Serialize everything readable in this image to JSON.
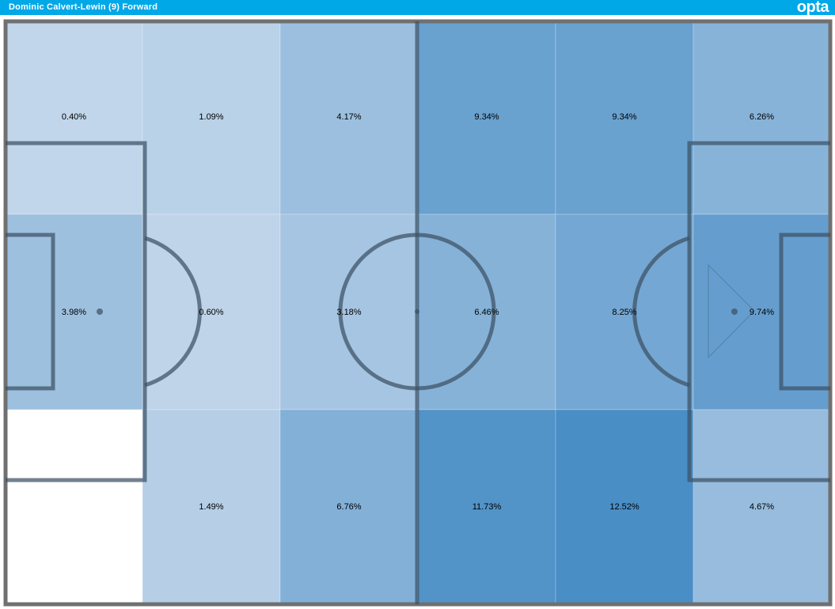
{
  "header": {
    "title": "Dominic Calvert-Lewin (9) Forward",
    "logo": "opta",
    "background": "#00a8e8"
  },
  "heatmap": {
    "rows": [
      [
        {
          "label": "0.40%",
          "value": 0.4
        },
        {
          "label": "1.09%",
          "value": 1.09
        },
        {
          "label": "4.17%",
          "value": 4.17
        },
        {
          "label": "9.34%",
          "value": 9.34
        },
        {
          "label": "9.34%",
          "value": 9.34
        },
        {
          "label": "6.26%",
          "value": 6.26
        }
      ],
      [
        {
          "label": "3.98%",
          "value": 3.98
        },
        {
          "label": "0.60%",
          "value": 0.6
        },
        {
          "label": "3.18%",
          "value": 3.18
        },
        {
          "label": "6.46%",
          "value": 6.46
        },
        {
          "label": "8.25%",
          "value": 8.25
        },
        {
          "label": "9.74%",
          "value": 9.74
        }
      ],
      [
        {
          "label": "",
          "value": 0
        },
        {
          "label": "1.49%",
          "value": 1.49
        },
        {
          "label": "6.76%",
          "value": 6.76
        },
        {
          "label": "11.73%",
          "value": 11.73
        },
        {
          "label": "12.52%",
          "value": 12.52
        },
        {
          "label": "4.67%",
          "value": 4.67
        }
      ]
    ],
    "colors": {
      "low": "#c5d8eb",
      "high": "#4a8ec6",
      "empty": "#ffffff",
      "pitch_lines": "rgba(60,80,100,0.72)",
      "outline": "#707070"
    }
  }
}
